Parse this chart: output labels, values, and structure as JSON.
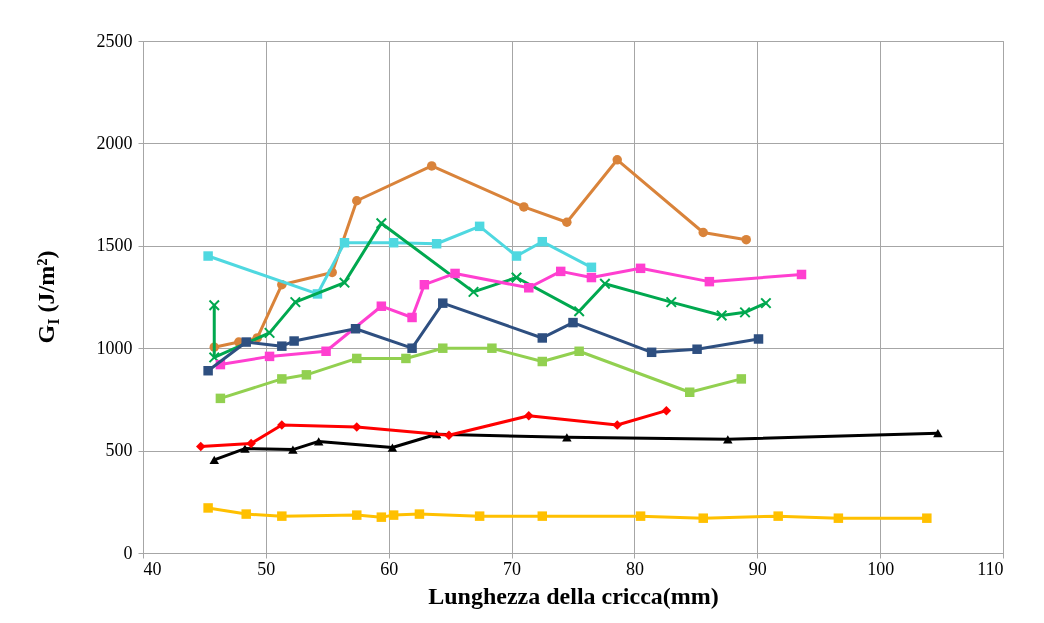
{
  "chart_data": {
    "type": "line",
    "xlabel": "Lunghezza della cricca(mm)",
    "ylabel": "G$_{I}$ (J/m²)",
    "xlim": [
      40,
      110
    ],
    "xticks": [
      40,
      50,
      60,
      70,
      80,
      90,
      100,
      110
    ],
    "ylim": [
      0,
      2500
    ],
    "yticks": [
      0,
      500,
      1000,
      1500,
      2000,
      2500
    ],
    "grid": true,
    "series": [
      {
        "color": "#d9833a",
        "marker": "circle",
        "x": [
          45.8,
          47.8,
          49.3,
          51.3,
          55.4,
          57.4,
          63.5,
          71,
          74.5,
          78.6,
          85.6,
          89.1
        ],
        "values": [
          1005,
          1030,
          1050,
          1310,
          1370,
          1720,
          1890,
          1690,
          1615,
          1920,
          1565,
          1530
        ]
      },
      {
        "color": "#4fd8e0",
        "marker": "square",
        "x": [
          45.3,
          54.2,
          56.4,
          60.4,
          63.9,
          67.4,
          70.4,
          72.5,
          76.5
        ],
        "values": [
          1450,
          1265,
          1515,
          1515,
          1510,
          1595,
          1450,
          1520,
          1395
        ]
      },
      {
        "color": "#00a84f",
        "marker": "cross",
        "x": [
          45.8,
          45.8,
          50.3,
          52.4,
          56.4,
          59.4,
          66.9,
          70.4,
          75.5,
          77.6,
          83,
          87.1,
          89,
          90.7
        ],
        "values": [
          1210,
          955,
          1075,
          1225,
          1320,
          1610,
          1275,
          1345,
          1180,
          1315,
          1225,
          1160,
          1175,
          1220
        ]
      },
      {
        "color": "#ff3fd0",
        "marker": "square",
        "x": [
          46.3,
          50.3,
          54.9,
          59.4,
          61.9,
          62.9,
          65.4,
          71.4,
          74,
          76.5,
          80.5,
          86.1,
          93.6
        ],
        "values": [
          920,
          960,
          985,
          1205,
          1150,
          1310,
          1365,
          1295,
          1375,
          1345,
          1390,
          1325,
          1360
        ]
      },
      {
        "color": "#2e4f80",
        "marker": "square",
        "x": [
          45.3,
          48.4,
          51.3,
          52.3,
          57.3,
          61.9,
          64.4,
          72.5,
          75,
          81.4,
          85.1,
          90.1
        ],
        "values": [
          890,
          1030,
          1010,
          1035,
          1095,
          1000,
          1220,
          1050,
          1125,
          980,
          995,
          1045
        ]
      },
      {
        "color": "#92d050",
        "marker": "square",
        "x": [
          46.3,
          51.3,
          53.3,
          57.4,
          61.4,
          64.4,
          68.4,
          72.5,
          75.5,
          84.5,
          88.7
        ],
        "values": [
          755,
          850,
          870,
          950,
          950,
          1000,
          1000,
          935,
          985,
          785,
          850
        ]
      },
      {
        "color": "#000000",
        "marker": "triangle",
        "x": [
          45.8,
          48.3,
          52.2,
          54.3,
          60.3,
          63.9,
          74.5,
          87.6,
          104.7
        ],
        "values": [
          455,
          510,
          505,
          545,
          515,
          580,
          565,
          555,
          585
        ]
      },
      {
        "color": "#ff0000",
        "marker": "diamond",
        "x": [
          44.7,
          48.8,
          51.3,
          57.4,
          64.9,
          71.4,
          78.6,
          82.6
        ],
        "values": [
          520,
          535,
          625,
          615,
          575,
          670,
          625,
          695
        ]
      },
      {
        "color": "#ffc000",
        "marker": "square",
        "x": [
          45.3,
          48.4,
          51.3,
          57.4,
          59.4,
          60.4,
          62.5,
          67.4,
          72.5,
          80.5,
          85.6,
          91.7,
          96.6,
          103.8
        ],
        "values": [
          220,
          190,
          180,
          185,
          175,
          185,
          190,
          180,
          180,
          180,
          170,
          180,
          170,
          170
        ]
      }
    ]
  }
}
